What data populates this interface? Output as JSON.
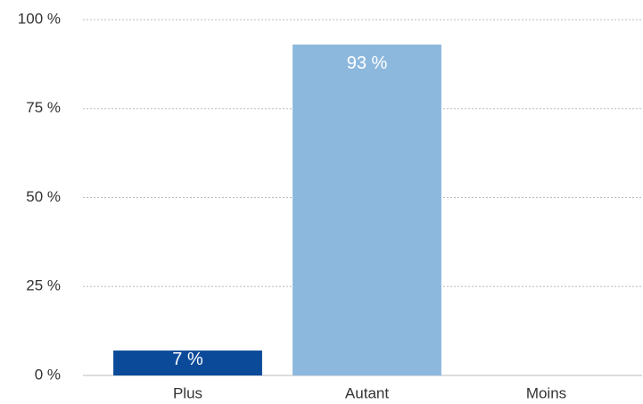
{
  "chart_data": {
    "type": "bar",
    "categories": [
      "Plus",
      "Autant",
      "Moins"
    ],
    "values": [
      7,
      93,
      0
    ],
    "value_labels": [
      "7 %",
      "93 %",
      null
    ],
    "colors": [
      "#0b4a99",
      "#8db8de",
      "#8db8de"
    ],
    "ylim": [
      0,
      100
    ],
    "yticks": [
      {
        "value": 0,
        "label": "0 %"
      },
      {
        "value": 25,
        "label": "25 %"
      },
      {
        "value": 50,
        "label": "50 %"
      },
      {
        "value": 75,
        "label": "75 %"
      },
      {
        "value": 100,
        "label": "100 %"
      }
    ],
    "grid": true
  }
}
